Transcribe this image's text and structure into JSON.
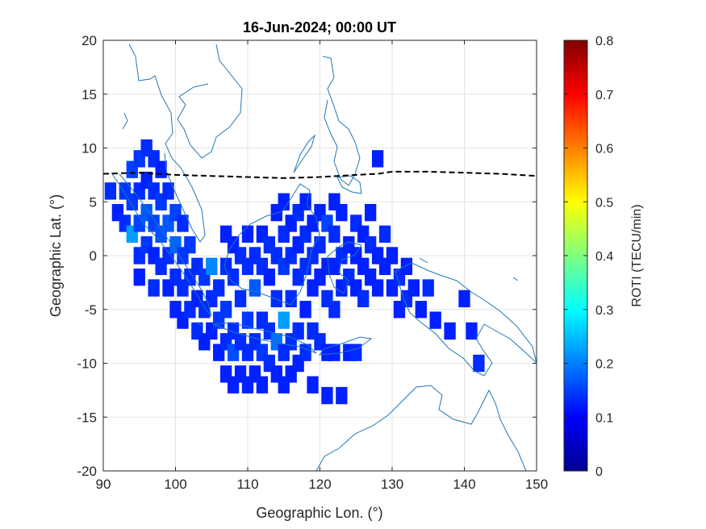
{
  "chart_data": {
    "type": "heatmap",
    "title": "16-Jun-2024; 00:00 UT",
    "xlabel": "Geographic Lon. (°)",
    "ylabel": "Geographic Lat. (°)",
    "xlim": [
      90,
      150
    ],
    "ylim": [
      -20,
      20
    ],
    "xticks": [
      "90",
      "100",
      "110",
      "120",
      "130",
      "140",
      "150"
    ],
    "yticks": [
      "20",
      "15",
      "10",
      "5",
      "0",
      "-5",
      "-10",
      "-15",
      "-20"
    ],
    "grid": true,
    "colorbar": {
      "label": "ROTI (TECU/min)",
      "range": [
        0,
        0.8
      ],
      "ticks": [
        "0.8",
        "0.7",
        "0.6",
        "0.5",
        "0.4",
        "0.3",
        "0.2",
        "0.1",
        "0"
      ],
      "colormap": "jet"
    },
    "magnetic_equator": {
      "style": "dashed",
      "color": "#000000",
      "points": [
        [
          90,
          7.6
        ],
        [
          95,
          7.7
        ],
        [
          100,
          7.5
        ],
        [
          105,
          7.4
        ],
        [
          110,
          7.3
        ],
        [
          115,
          7.2
        ],
        [
          120,
          7.3
        ],
        [
          125,
          7.5
        ],
        [
          128,
          7.6
        ],
        [
          130,
          7.8
        ],
        [
          135,
          7.8
        ],
        [
          140,
          7.7
        ],
        [
          145,
          7.6
        ],
        [
          150,
          7.4
        ]
      ]
    },
    "coastline_color": "#1f77b4",
    "roti_cells": [
      [
        91,
        6,
        0.06
      ],
      [
        92,
        4,
        0.05
      ],
      [
        93,
        6,
        0.07
      ],
      [
        93,
        3,
        0.06
      ],
      [
        94,
        8,
        0.08
      ],
      [
        94,
        5,
        0.07
      ],
      [
        94,
        2,
        0.16
      ],
      [
        95,
        9,
        0.07
      ],
      [
        95,
        6,
        0.06
      ],
      [
        95,
        3,
        0.08
      ],
      [
        95,
        0,
        0.06
      ],
      [
        95,
        -2,
        0.05
      ],
      [
        96,
        10,
        0.06
      ],
      [
        96,
        7,
        0.05
      ],
      [
        96,
        4,
        0.1
      ],
      [
        96,
        1,
        0.07
      ],
      [
        97,
        9,
        0.06
      ],
      [
        97,
        6,
        0.06
      ],
      [
        97,
        3,
        0.08
      ],
      [
        97,
        0,
        0.05
      ],
      [
        97,
        -3,
        0.06
      ],
      [
        98,
        8,
        0.05
      ],
      [
        98,
        5,
        0.07
      ],
      [
        98,
        2,
        0.09
      ],
      [
        98,
        -1,
        0.06
      ],
      [
        99,
        6,
        0.06
      ],
      [
        99,
        3,
        0.1
      ],
      [
        99,
        0,
        0.06
      ],
      [
        99,
        -3,
        0.05
      ],
      [
        100,
        4,
        0.08
      ],
      [
        100,
        1,
        0.11
      ],
      [
        100,
        -2,
        0.06
      ],
      [
        100,
        -5,
        0.05
      ],
      [
        101,
        3,
        0.06
      ],
      [
        101,
        0,
        0.07
      ],
      [
        101,
        -3,
        0.06
      ],
      [
        101,
        -6,
        0.05
      ],
      [
        102,
        1,
        0.07
      ],
      [
        102,
        -2,
        0.06
      ],
      [
        102,
        -5,
        0.06
      ],
      [
        103,
        -1,
        0.06
      ],
      [
        103,
        -4,
        0.05
      ],
      [
        103,
        -7,
        0.06
      ],
      [
        104,
        -2,
        0.07
      ],
      [
        104,
        -5,
        0.06
      ],
      [
        104,
        -8,
        0.05
      ],
      [
        105,
        -1,
        0.14
      ],
      [
        105,
        -4,
        0.06
      ],
      [
        105,
        -7,
        0.05
      ],
      [
        106,
        -3,
        0.06
      ],
      [
        106,
        -6,
        0.07
      ],
      [
        106,
        -9,
        0.05
      ],
      [
        107,
        2,
        0.05
      ],
      [
        107,
        -1,
        0.06
      ],
      [
        107,
        -5,
        0.07
      ],
      [
        107,
        -8,
        0.06
      ],
      [
        107,
        -11,
        0.05
      ],
      [
        108,
        1,
        0.05
      ],
      [
        108,
        -2,
        0.06
      ],
      [
        108,
        -7,
        0.06
      ],
      [
        108,
        -9,
        0.09
      ],
      [
        108,
        -12,
        0.05
      ],
      [
        109,
        0,
        0.06
      ],
      [
        109,
        -4,
        0.06
      ],
      [
        109,
        -8,
        0.06
      ],
      [
        109,
        -11,
        0.05
      ],
      [
        110,
        2,
        0.05
      ],
      [
        110,
        -1,
        0.06
      ],
      [
        110,
        -6,
        0.07
      ],
      [
        110,
        -9,
        0.06
      ],
      [
        110,
        -12,
        0.05
      ],
      [
        111,
        0,
        0.06
      ],
      [
        111,
        -3,
        0.1
      ],
      [
        111,
        -8,
        0.06
      ],
      [
        111,
        -11,
        0.05
      ],
      [
        112,
        2,
        0.05
      ],
      [
        112,
        -1,
        0.06
      ],
      [
        112,
        -6,
        0.06
      ],
      [
        112,
        -9,
        0.07
      ],
      [
        112,
        -12,
        0.05
      ],
      [
        113,
        1,
        0.06
      ],
      [
        113,
        -2,
        0.05
      ],
      [
        113,
        -7,
        0.06
      ],
      [
        113,
        -10,
        0.06
      ],
      [
        114,
        4,
        0.05
      ],
      [
        114,
        0,
        0.06
      ],
      [
        114,
        -4,
        0.06
      ],
      [
        114,
        -8,
        0.12
      ],
      [
        114,
        -11,
        0.05
      ],
      [
        115,
        5,
        0.05
      ],
      [
        115,
        2,
        0.06
      ],
      [
        115,
        -1,
        0.07
      ],
      [
        115,
        -6,
        0.16
      ],
      [
        115,
        -9,
        0.06
      ],
      [
        115,
        -12,
        0.05
      ],
      [
        116,
        3,
        0.05
      ],
      [
        116,
        0,
        0.06
      ],
      [
        116,
        -4,
        0.06
      ],
      [
        116,
        -8,
        0.06
      ],
      [
        116,
        -11,
        0.05
      ],
      [
        117,
        4,
        0.06
      ],
      [
        117,
        1,
        0.05
      ],
      [
        117,
        -2,
        0.06
      ],
      [
        117,
        -7,
        0.06
      ],
      [
        117,
        -10,
        0.05
      ],
      [
        118,
        5,
        0.05
      ],
      [
        118,
        2,
        0.06
      ],
      [
        118,
        -1,
        0.06
      ],
      [
        118,
        -5,
        0.05
      ],
      [
        118,
        -9,
        0.06
      ],
      [
        119,
        3,
        0.05
      ],
      [
        119,
        0,
        0.06
      ],
      [
        119,
        -3,
        0.05
      ],
      [
        119,
        -7,
        0.06
      ],
      [
        119,
        -12,
        0.05
      ],
      [
        120,
        4,
        0.05
      ],
      [
        120,
        1,
        0.06
      ],
      [
        120,
        -2,
        0.05
      ],
      [
        120,
        -8,
        0.06
      ],
      [
        121,
        3,
        0.08
      ],
      [
        121,
        -1,
        0.05
      ],
      [
        121,
        -4,
        0.06
      ],
      [
        121,
        -9,
        0.05
      ],
      [
        121,
        -13,
        0.05
      ],
      [
        122,
        5,
        0.05
      ],
      [
        122,
        2,
        0.06
      ],
      [
        122,
        -1,
        0.05
      ],
      [
        122,
        -5,
        0.06
      ],
      [
        122,
        -9,
        0.05
      ],
      [
        123,
        4,
        0.05
      ],
      [
        123,
        0,
        0.06
      ],
      [
        123,
        -3,
        0.05
      ],
      [
        123,
        -13,
        0.05
      ],
      [
        124,
        1,
        0.05
      ],
      [
        124,
        -2,
        0.06
      ],
      [
        124,
        -9,
        0.05
      ],
      [
        125,
        3,
        0.06
      ],
      [
        125,
        0,
        0.05
      ],
      [
        125,
        -3,
        0.05
      ],
      [
        125,
        -9,
        0.06
      ],
      [
        126,
        2,
        0.05
      ],
      [
        126,
        -1,
        0.05
      ],
      [
        126,
        -4,
        0.06
      ],
      [
        127,
        4,
        0.05
      ],
      [
        127,
        1,
        0.06
      ],
      [
        127,
        -2,
        0.05
      ],
      [
        128,
        9,
        0.05
      ],
      [
        128,
        0,
        0.05
      ],
      [
        128,
        -3,
        0.05
      ],
      [
        129,
        2,
        0.06
      ],
      [
        129,
        -1,
        0.05
      ],
      [
        130,
        0,
        0.05
      ],
      [
        130,
        -3,
        0.05
      ],
      [
        131,
        -2,
        0.06
      ],
      [
        131,
        -5,
        0.05
      ],
      [
        132,
        -1,
        0.05
      ],
      [
        132,
        -4,
        0.06
      ],
      [
        133,
        -3,
        0.05
      ],
      [
        134,
        -5,
        0.05
      ],
      [
        135,
        -3,
        0.06
      ],
      [
        136,
        -6,
        0.05
      ],
      [
        138,
        -7,
        0.05
      ],
      [
        140,
        -4,
        0.05
      ],
      [
        141,
        -7,
        0.05
      ],
      [
        142,
        -10,
        0.06
      ]
    ]
  }
}
